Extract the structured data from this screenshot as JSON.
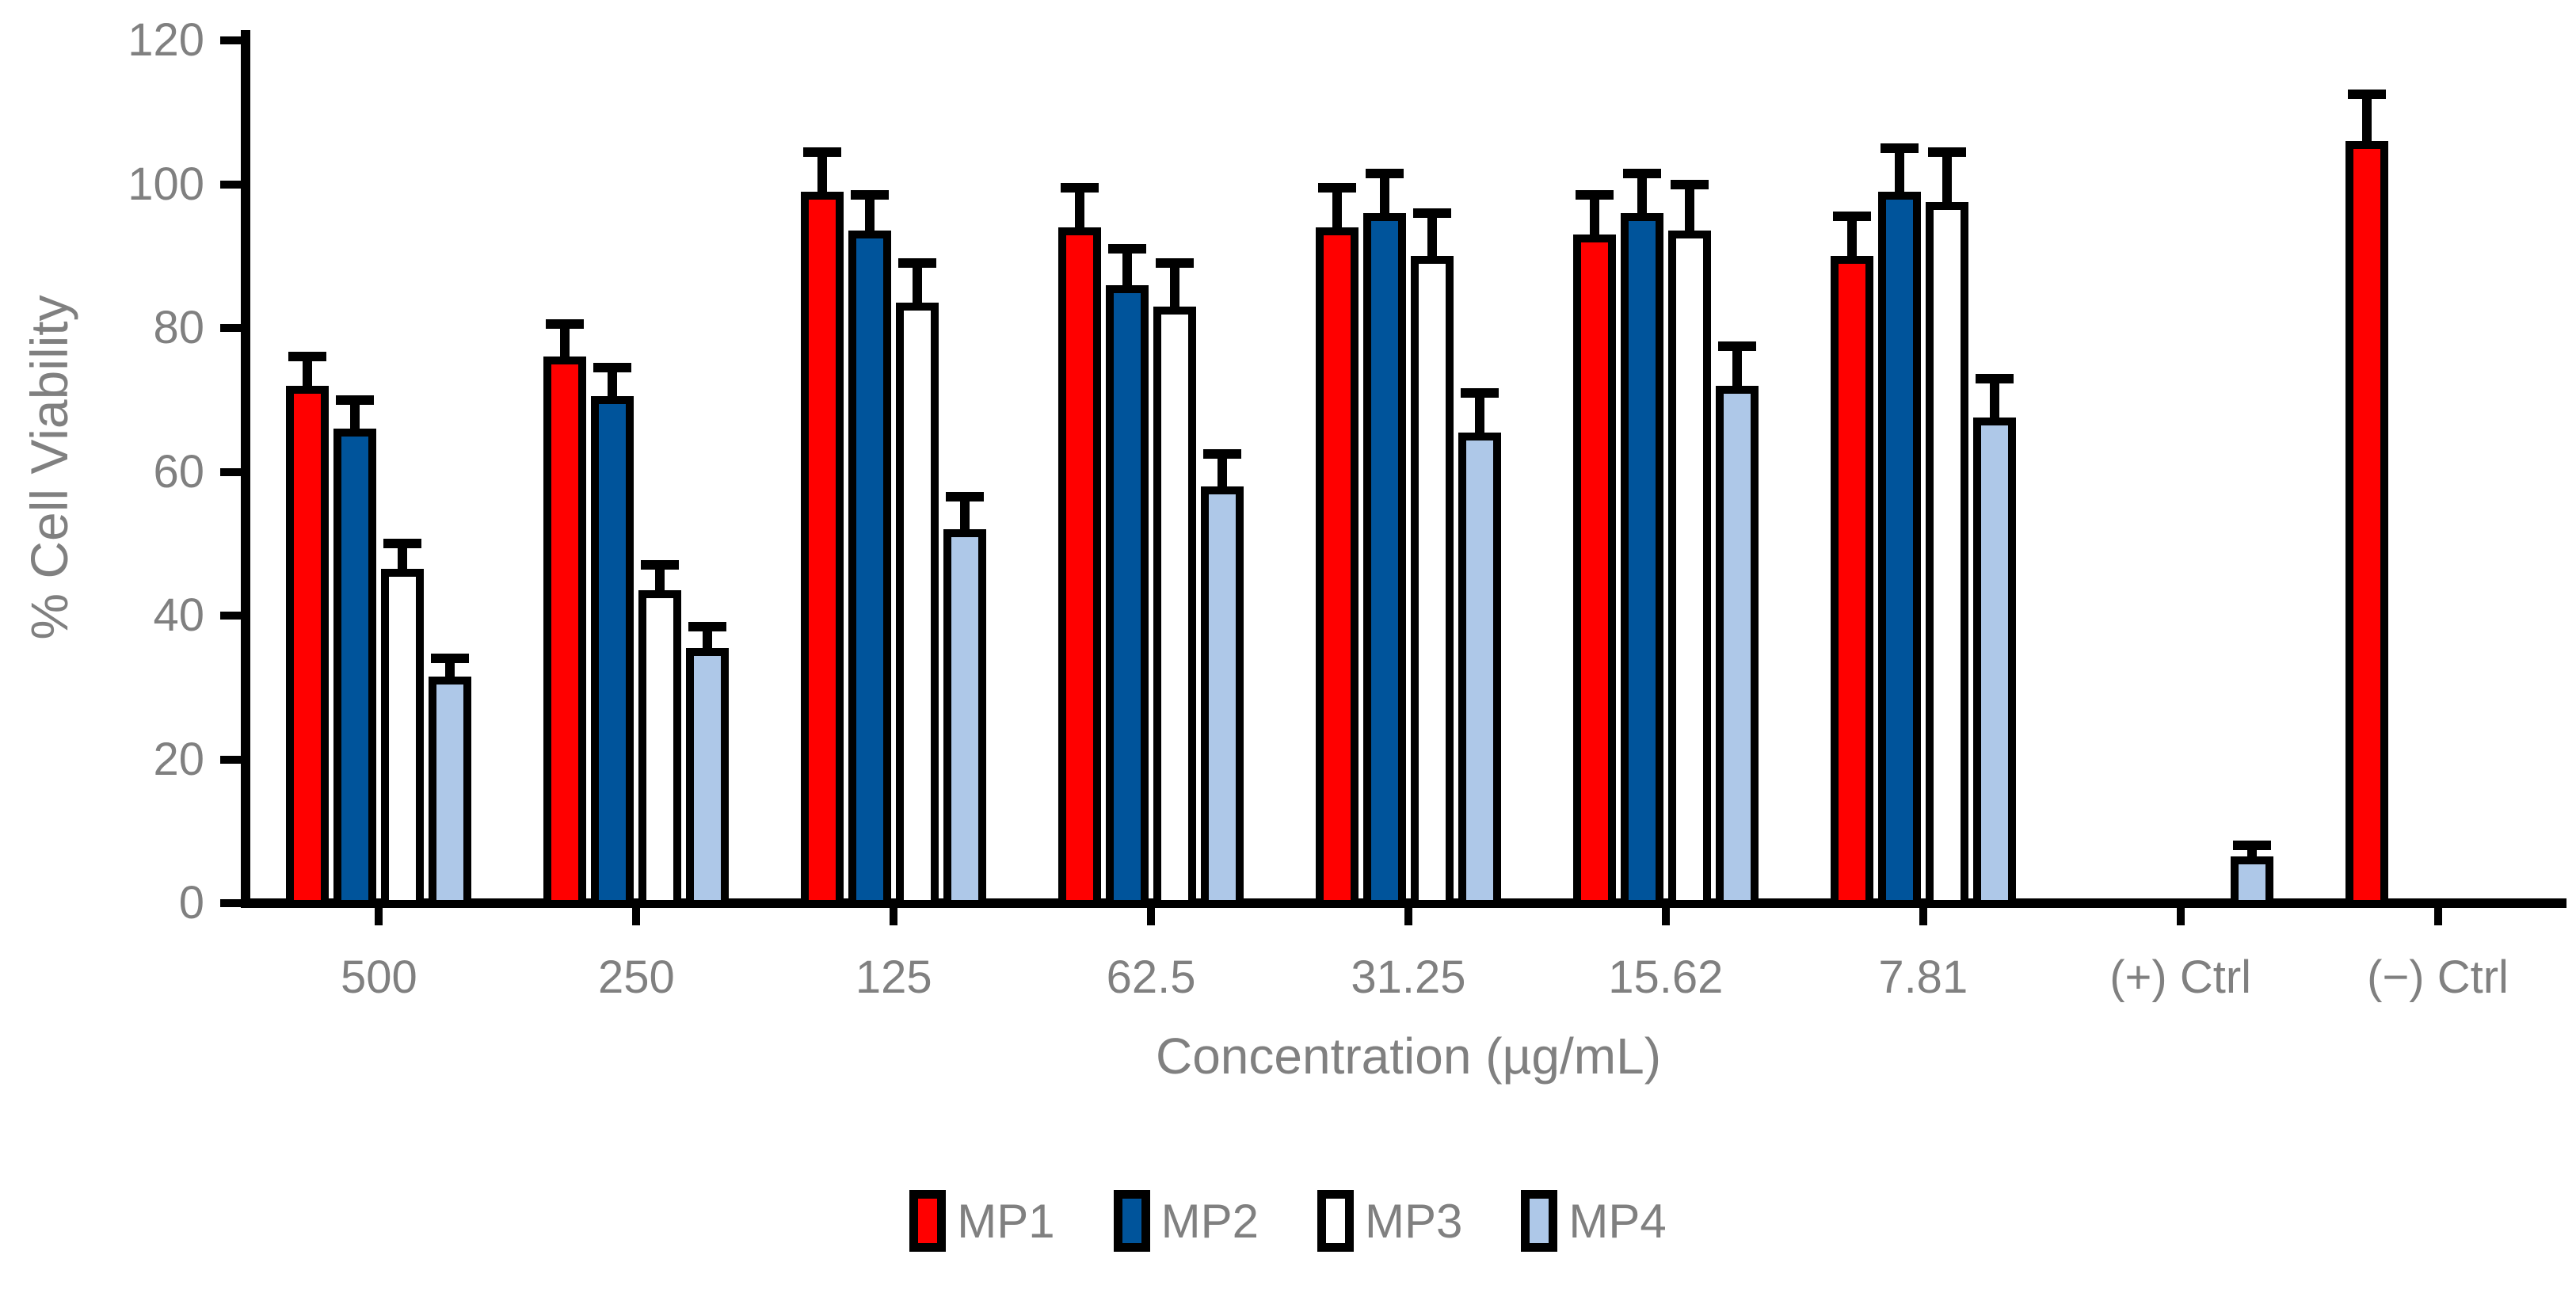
{
  "chart_data": {
    "type": "bar",
    "title": "",
    "xlabel": "Concentration (µg/mL)",
    "ylabel": "% Cell Viability",
    "ylim": [
      0,
      120
    ],
    "y_ticks": [
      0,
      20,
      40,
      60,
      80,
      100,
      120
    ],
    "grid": false,
    "legend_position": "bottom",
    "categories": [
      "500",
      "250",
      "125",
      "62.5",
      "31.25",
      "15.62",
      "7.81",
      "(+) Ctrl",
      "(−) Ctrl"
    ],
    "series": [
      {
        "name": "MP1",
        "color": "#FF0000",
        "values": [
          72,
          76,
          99,
          94,
          94,
          93,
          90,
          null,
          106
        ],
        "errors": [
          4,
          4.5,
          5.5,
          5.5,
          5.5,
          5.5,
          5.5,
          null,
          6.5
        ]
      },
      {
        "name": "MP2",
        "color": "#00549B",
        "values": [
          66,
          70.5,
          93.5,
          86,
          96,
          96,
          99,
          null,
          null
        ],
        "errors": [
          4,
          4,
          5,
          5,
          5.5,
          5.5,
          6,
          null,
          null
        ]
      },
      {
        "name": "MP3",
        "color": "#FFFFFF",
        "values": [
          46.5,
          43.5,
          83.5,
          83,
          90,
          93.5,
          97.5,
          null,
          null
        ],
        "errors": [
          3.5,
          3.5,
          5.5,
          6,
          6,
          6.5,
          7,
          null,
          null
        ]
      },
      {
        "name": "MP4",
        "color": "#AEC8E8",
        "values": [
          31.5,
          35.5,
          52,
          58,
          65.5,
          72,
          67.5,
          6.5,
          null
        ],
        "errors": [
          2.5,
          3,
          4.5,
          4.5,
          5.5,
          5.5,
          5.5,
          1.5,
          null
        ]
      }
    ],
    "bar_border_color": "#000000",
    "error_bar_color": "#000000",
    "axis_color": "#000000",
    "text_color": "#808080",
    "background_color": "#FFFFFF"
  }
}
